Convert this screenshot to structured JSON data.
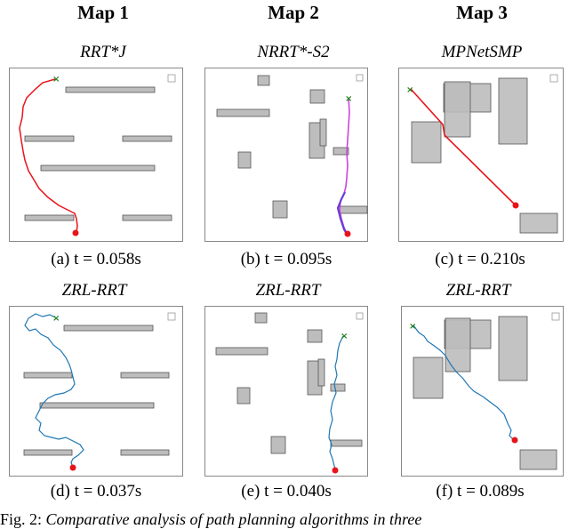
{
  "columns": [
    "Map 1",
    "Map 2",
    "Map 3"
  ],
  "panels": [
    {
      "title": "RRT*J",
      "caption": "(a) t = 0.058s"
    },
    {
      "title": "NRRT*-S2",
      "caption": "(b) t = 0.095s"
    },
    {
      "title": "MPNetSMP",
      "caption": "(c) t = 0.210s"
    },
    {
      "title": "ZRL-RRT",
      "caption": "(d) t = 0.037s"
    },
    {
      "title": "ZRL-RRT",
      "caption": "(e) t = 0.040s"
    },
    {
      "title": "ZRL-RRT",
      "caption": "(f) t = 0.089s"
    }
  ],
  "figure_caption": {
    "label": "Fig. 2:",
    "text": "Comparative analysis of path planning algorithms in three"
  },
  "colors": {
    "obstacle_fill": "#bdbdbd",
    "obstacle_stroke": "#555555",
    "path_red": "#e8141c",
    "path_magenta": "#cc44dd",
    "path_purple": "#6a3cd8",
    "path_blue": "#1f77b4",
    "goal_green": "#1b7f1b",
    "start_red": "#e8141c",
    "border": "#888888"
  }
}
